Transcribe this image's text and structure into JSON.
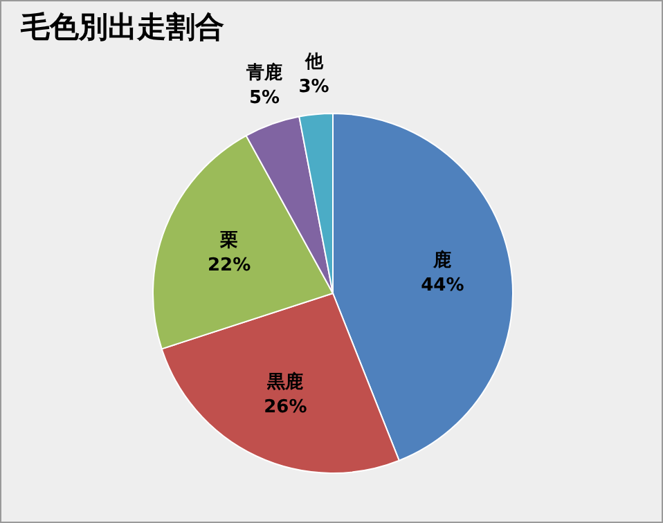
{
  "chart_data": {
    "type": "pie",
    "title": "毛色別出走割合",
    "categories": [
      "鹿",
      "黒鹿",
      "栗",
      "青鹿",
      "他"
    ],
    "values": [
      44,
      26,
      22,
      5,
      3
    ],
    "value_labels": [
      "44%",
      "26%",
      "22%",
      "5%",
      "3%"
    ],
    "colors": [
      "#4f81bd",
      "#c0504d",
      "#9bbb59",
      "#8064a2",
      "#4bacc6"
    ],
    "legend": false
  }
}
